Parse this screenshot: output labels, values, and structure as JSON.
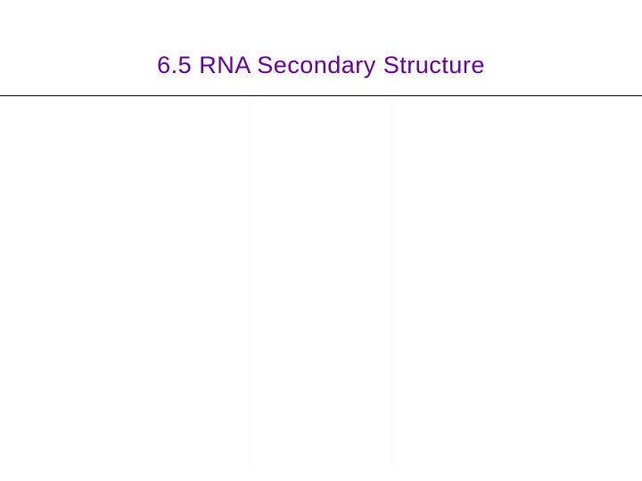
{
  "slide": {
    "title": "6.5  RNA Secondary Structure",
    "title_color": "#660099",
    "title_fontsize": 27,
    "background_color": "#ffffff",
    "divider_color": "#000000",
    "font_family": "Comic Sans MS"
  }
}
